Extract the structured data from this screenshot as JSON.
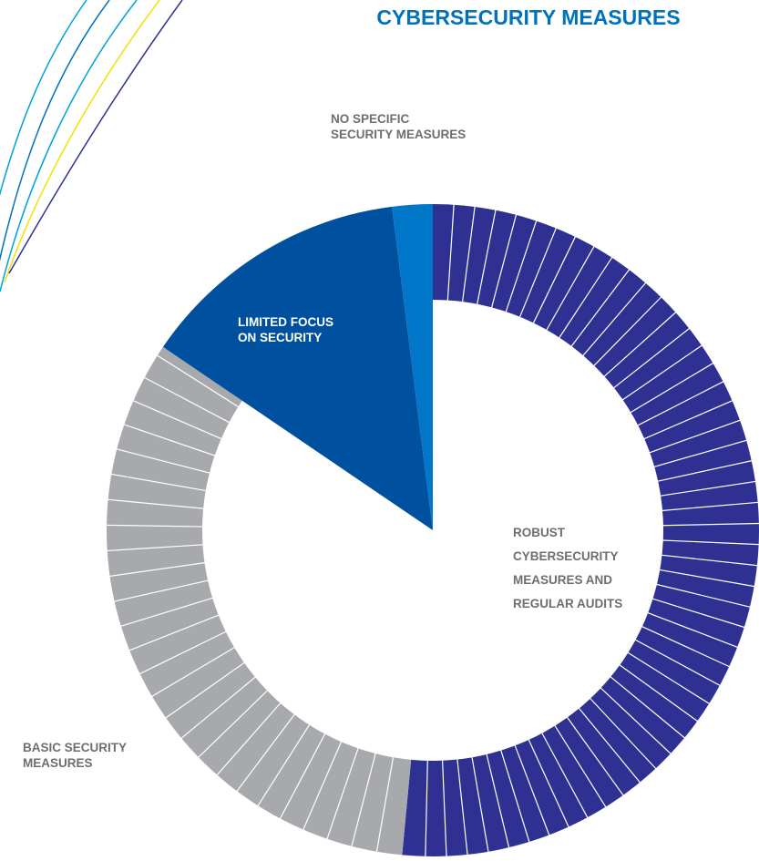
{
  "chart_data": {
    "type": "pie",
    "title": "CYBERSECURITY MEASURES",
    "categories": [
      "ROBUST\nCYBERSECURITY\nMEASURES AND\nREGULAR AUDITS",
      "BASIC SECURITY\nMEASURES",
      "LIMITED FOCUS\nON  SECURITY",
      "NO SPECIFIC\nSECURITY  MEASURES"
    ],
    "values": [
      51.5,
      33,
      13.5,
      2
    ],
    "colors": [
      "#2e3192",
      "#a7a9ac",
      "#0050a0",
      "#0077c8"
    ]
  }
}
